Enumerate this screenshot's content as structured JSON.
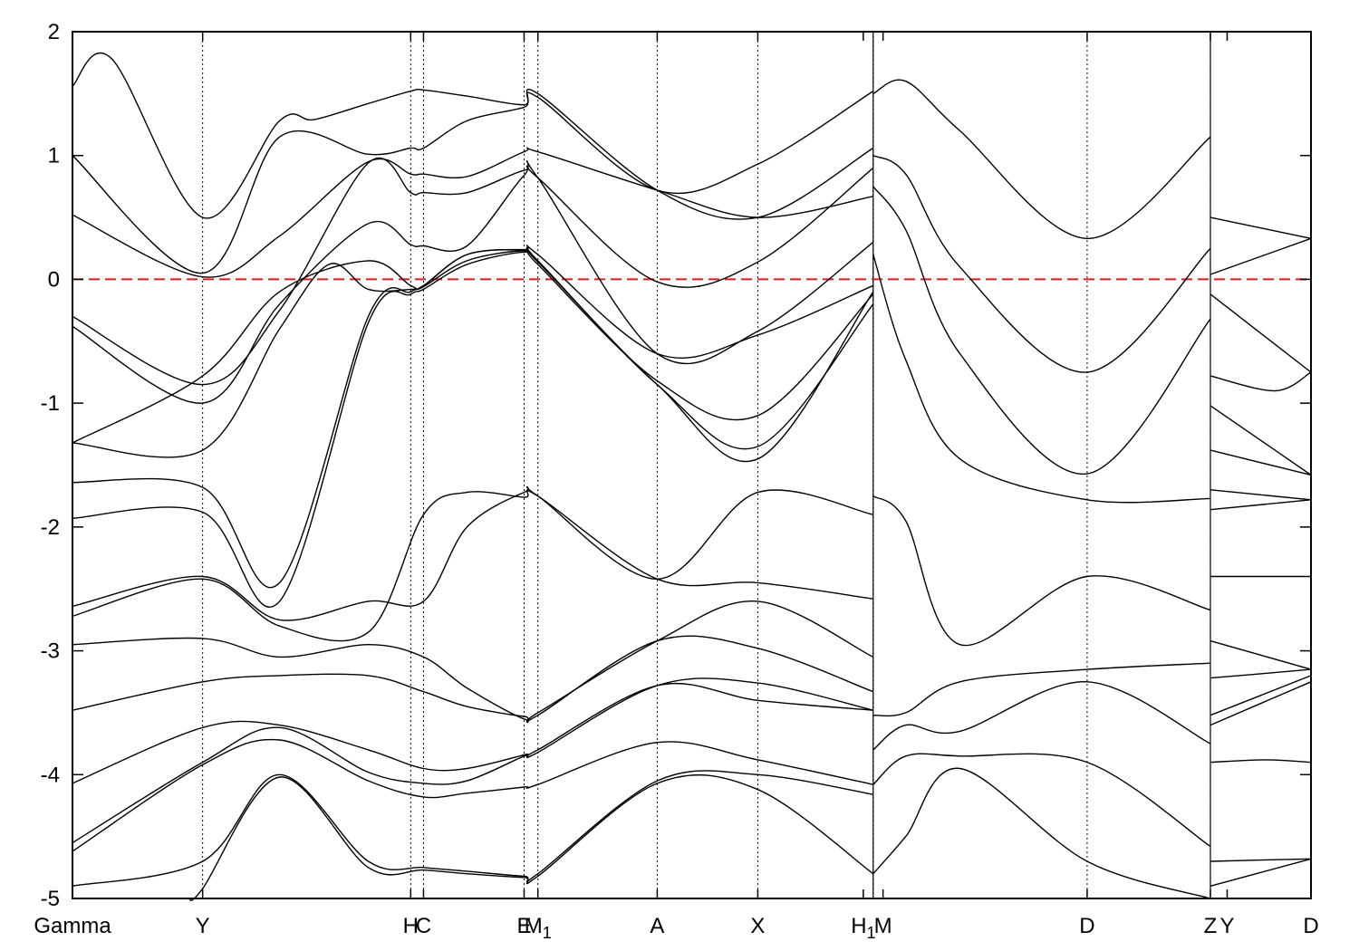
{
  "chart_data": {
    "type": "line",
    "title": "",
    "xlabel": "",
    "ylabel": "",
    "ylim": [
      -5,
      2
    ],
    "yticks": [
      2,
      1,
      0,
      -1,
      -2,
      -3,
      -4,
      -5
    ],
    "grid": false,
    "legend": "none",
    "fermi_level": {
      "y": 0,
      "color": "#d81e1e",
      "style": "dashed"
    },
    "segments": [
      {
        "x": [
          0,
          1.32
        ],
        "labels": [
          "Gamma",
          "Y",
          "H",
          "C",
          "E",
          "M1",
          "A",
          "X",
          "H1"
        ],
        "positions": [
          0,
          0.132,
          0.343,
          0.356,
          0.458,
          0.472,
          0.593,
          0.695,
          0.812
        ]
      },
      {
        "x": [
          0.812,
          1.154
        ]
      },
      {
        "x": [
          1.154,
          1.256
        ]
      }
    ],
    "x_ticks": [
      {
        "x": 0.0,
        "label": "Gamma"
      },
      {
        "x": 0.132,
        "label": "Y"
      },
      {
        "x": 0.343,
        "label": "H"
      },
      {
        "x": 0.356,
        "label": "C"
      },
      {
        "x": 0.458,
        "label": "E"
      },
      {
        "x": 0.472,
        "label": "M1"
      },
      {
        "x": 0.593,
        "label": "A"
      },
      {
        "x": 0.695,
        "label": "X"
      },
      {
        "x": 0.802,
        "label": "H1"
      },
      {
        "x": 0.822,
        "label": "M"
      },
      {
        "x": 1.029,
        "label": "D"
      },
      {
        "x": 1.154,
        "label": "Z"
      },
      {
        "x": 1.171,
        "label": "Y"
      },
      {
        "x": 1.256,
        "label": "D"
      }
    ],
    "vlines": [
      0.132,
      0.343,
      0.356,
      0.458,
      0.472,
      0.593,
      0.695,
      0.812,
      1.029,
      1.154
    ],
    "series": [
      {
        "x": [
          0,
          0.04,
          0.132,
          0.21,
          0.245,
          0.3,
          0.343,
          0.356,
          0.4,
          0.458,
          0.472,
          0.593,
          0.695,
          0.812
        ],
        "y": [
          1.56,
          1.78,
          0.5,
          1.28,
          1.29,
          1.42,
          1.52,
          1.53,
          1.48,
          1.41,
          1.5,
          0.72,
          0.5,
          1.06
        ]
      },
      {
        "x": [
          0,
          0.132,
          0.21,
          0.3,
          0.343,
          0.356,
          0.4,
          0.458,
          0.472,
          0.593,
          0.695,
          0.812
        ],
        "y": [
          1.0,
          0.05,
          1.15,
          1.01,
          1.06,
          1.06,
          1.28,
          1.39,
          1.47,
          0.72,
          0.93,
          1.52
        ]
      },
      {
        "x": [
          0,
          0.132,
          0.21,
          0.3,
          0.343,
          0.356,
          0.4,
          0.458,
          0.472,
          0.593,
          0.695,
          0.812
        ],
        "y": [
          0.52,
          0.02,
          0.35,
          0.95,
          0.85,
          0.85,
          0.83,
          1.03,
          1.03,
          0.72,
          0.5,
          0.67
        ]
      },
      {
        "x": [
          0,
          0.132,
          0.21,
          0.3,
          0.343,
          0.356,
          0.4,
          0.458,
          0.472,
          0.593,
          0.695,
          0.812
        ],
        "y": [
          -0.3,
          -0.85,
          -0.25,
          0.94,
          0.7,
          0.7,
          0.7,
          0.88,
          0.82,
          -0.02,
          0.14,
          0.9
        ]
      },
      {
        "x": [
          0,
          0.132,
          0.21,
          0.3,
          0.343,
          0.356,
          0.4,
          0.458,
          0.472,
          0.593,
          0.695,
          0.812
        ],
        "y": [
          -0.38,
          -1.0,
          -0.2,
          0.45,
          0.28,
          0.27,
          0.27,
          0.84,
          0.82,
          -0.6,
          -0.42,
          0.3
        ]
      },
      {
        "x": [
          0,
          0.132,
          0.21,
          0.3,
          0.343,
          0.356,
          0.4,
          0.458,
          0.472,
          0.593,
          0.695,
          0.812
        ],
        "y": [
          -1.32,
          -0.78,
          -0.1,
          0.15,
          -0.05,
          -0.05,
          0.2,
          0.24,
          0.2,
          -0.6,
          -0.45,
          -0.05
        ]
      },
      {
        "x": [
          0,
          0.132,
          0.21,
          0.26,
          0.3,
          0.343,
          0.356,
          0.4,
          0.458,
          0.472,
          0.593,
          0.695,
          0.812
        ],
        "y": [
          -1.32,
          -1.38,
          -0.4,
          0.12,
          -0.08,
          -0.08,
          -0.05,
          0.2,
          0.23,
          0.12,
          -0.82,
          -1.1,
          -0.12
        ]
      },
      {
        "x": [
          0,
          0.132,
          0.21,
          0.3,
          0.343,
          0.356,
          0.4,
          0.458,
          0.472,
          0.593,
          0.695,
          0.812
        ],
        "y": [
          -1.64,
          -1.68,
          -2.45,
          -0.3,
          -0.1,
          -0.06,
          0.15,
          0.23,
          0.15,
          -0.85,
          -1.35,
          -0.2
        ]
      },
      {
        "x": [
          0,
          0.132,
          0.21,
          0.3,
          0.343,
          0.356,
          0.4,
          0.458,
          0.472,
          0.593,
          0.695,
          0.812
        ],
        "y": [
          -1.93,
          -1.88,
          -2.6,
          -0.35,
          -0.12,
          -0.08,
          0.12,
          0.22,
          0.14,
          -0.85,
          -1.45,
          -0.1
        ]
      },
      {
        "x": [
          0,
          0.132,
          0.21,
          0.3,
          0.356,
          0.4,
          0.458,
          0.472,
          0.593,
          0.695,
          0.812
        ],
        "y": [
          -2.64,
          -2.4,
          -2.75,
          -2.6,
          -2.6,
          -2.0,
          -1.72,
          -1.75,
          -2.42,
          -1.72,
          -1.9
        ]
      },
      {
        "x": [
          0,
          0.132,
          0.21,
          0.3,
          0.356,
          0.4,
          0.458,
          0.472,
          0.593,
          0.695,
          0.812
        ],
        "y": [
          -2.72,
          -2.42,
          -2.8,
          -2.85,
          -1.9,
          -1.72,
          -1.76,
          -1.75,
          -2.42,
          -2.45,
          -2.58
        ]
      },
      {
        "x": [
          0,
          0.132,
          0.21,
          0.3,
          0.356,
          0.4,
          0.458,
          0.472,
          0.593,
          0.695,
          0.812
        ],
        "y": [
          -2.95,
          -2.9,
          -3.05,
          -2.95,
          -3.05,
          -3.3,
          -3.55,
          -3.5,
          -2.92,
          -2.6,
          -3.05
        ]
      },
      {
        "x": [
          0,
          0.132,
          0.21,
          0.3,
          0.356,
          0.4,
          0.458,
          0.472,
          0.593,
          0.695,
          0.812
        ],
        "y": [
          -3.48,
          -3.25,
          -3.2,
          -3.2,
          -3.33,
          -3.45,
          -3.53,
          -3.52,
          -2.92,
          -2.98,
          -3.33
        ]
      },
      {
        "x": [
          0,
          0.132,
          0.21,
          0.3,
          0.356,
          0.4,
          0.458,
          0.472,
          0.593,
          0.695,
          0.812
        ],
        "y": [
          -4.07,
          -3.62,
          -3.6,
          -3.8,
          -3.95,
          -3.95,
          -3.84,
          -3.8,
          -3.28,
          -3.4,
          -3.48
        ]
      },
      {
        "x": [
          0,
          0.132,
          0.21,
          0.3,
          0.356,
          0.4,
          0.458,
          0.472,
          0.593,
          0.695,
          0.812
        ],
        "y": [
          -4.55,
          -3.9,
          -3.62,
          -3.98,
          -4.07,
          -4.05,
          -3.85,
          -3.82,
          -3.28,
          -3.26,
          -3.48
        ]
      },
      {
        "x": [
          0,
          0.132,
          0.21,
          0.3,
          0.356,
          0.4,
          0.458,
          0.472,
          0.593,
          0.695,
          0.812
        ],
        "y": [
          -4.62,
          -3.92,
          -3.72,
          -4.05,
          -4.18,
          -4.15,
          -4.1,
          -4.08,
          -3.74,
          -3.88,
          -4.08
        ]
      },
      {
        "x": [
          0,
          0.132,
          0.21,
          0.3,
          0.356,
          0.4,
          0.458,
          0.472,
          0.593,
          0.695,
          0.812
        ],
        "y": [
          -4.9,
          -4.7,
          -4.0,
          -4.7,
          -4.75,
          -4.78,
          -4.82,
          -4.8,
          -4.05,
          -4.0,
          -4.16
        ]
      },
      {
        "x": [
          0.118,
          0.132,
          0.21,
          0.3,
          0.356,
          0.4,
          0.458,
          0.472,
          0.593,
          0.695,
          0.812
        ],
        "y": [
          -5.0,
          -4.92,
          -4.02,
          -4.75,
          -4.77,
          -4.8,
          -4.83,
          -4.82,
          -4.07,
          -4.12,
          -4.8
        ]
      },
      {
        "x": [
          0.812,
          0.845,
          0.9,
          1.029,
          1.154
        ],
        "y": [
          1.5,
          1.6,
          1.2,
          0.33,
          1.15
        ]
      },
      {
        "x": [
          0.812,
          0.845,
          0.9,
          1.029,
          1.154
        ],
        "y": [
          1.0,
          0.85,
          0.1,
          -0.75,
          0.25
        ]
      },
      {
        "x": [
          0.812,
          0.845,
          0.9,
          1.029,
          1.154
        ],
        "y": [
          0.75,
          0.4,
          -0.6,
          -1.57,
          -0.32
        ]
      },
      {
        "x": [
          0.812,
          0.845,
          0.9,
          1.029,
          1.154
        ],
        "y": [
          0.2,
          -0.65,
          -1.45,
          -1.78,
          -1.77
        ]
      },
      {
        "x": [
          0.812,
          0.845,
          0.9,
          1.029,
          1.154
        ],
        "y": [
          -1.75,
          -1.95,
          -2.95,
          -2.4,
          -2.67
        ]
      },
      {
        "x": [
          0.812,
          0.845,
          0.9,
          1.029,
          1.154
        ],
        "y": [
          -3.52,
          -3.5,
          -3.25,
          -3.15,
          -3.1
        ]
      },
      {
        "x": [
          0.812,
          0.845,
          0.9,
          1.029,
          1.154
        ],
        "y": [
          -3.8,
          -3.6,
          -3.65,
          -3.25,
          -3.75
        ]
      },
      {
        "x": [
          0.812,
          0.845,
          0.9,
          1.029,
          1.154
        ],
        "y": [
          -4.08,
          -3.85,
          -3.85,
          -3.9,
          -4.58
        ]
      },
      {
        "x": [
          0.812,
          0.845,
          0.9,
          1.029,
          1.154
        ],
        "y": [
          -4.8,
          -4.5,
          -3.95,
          -4.7,
          -5.0
        ]
      },
      {
        "x": [
          1.154,
          1.256
        ],
        "y": [
          0.5,
          0.33
        ]
      },
      {
        "x": [
          1.154,
          1.256
        ],
        "y": [
          0.04,
          0.33
        ]
      },
      {
        "x": [
          1.154,
          1.256
        ],
        "y": [
          -0.12,
          -0.75
        ]
      },
      {
        "x": [
          1.154,
          1.22,
          1.256
        ],
        "y": [
          -0.78,
          -0.9,
          -0.75
        ]
      },
      {
        "x": [
          1.154,
          1.256
        ],
        "y": [
          -1.02,
          -1.58
        ]
      },
      {
        "x": [
          1.154,
          1.256
        ],
        "y": [
          -1.38,
          -1.58
        ]
      },
      {
        "x": [
          1.154,
          1.256
        ],
        "y": [
          -1.7,
          -1.78
        ]
      },
      {
        "x": [
          1.154,
          1.256
        ],
        "y": [
          -1.86,
          -1.78
        ]
      },
      {
        "x": [
          1.154,
          1.256
        ],
        "y": [
          -2.4,
          -2.4
        ]
      },
      {
        "x": [
          1.154,
          1.256
        ],
        "y": [
          -2.92,
          -3.15
        ]
      },
      {
        "x": [
          1.154,
          1.256
        ],
        "y": [
          -3.22,
          -3.15
        ]
      },
      {
        "x": [
          1.154,
          1.256
        ],
        "y": [
          -3.52,
          -3.2
        ]
      },
      {
        "x": [
          1.154,
          1.256
        ],
        "y": [
          -3.6,
          -3.25
        ]
      },
      {
        "x": [
          1.154,
          1.21,
          1.256
        ],
        "y": [
          -3.9,
          -3.88,
          -3.9
        ]
      },
      {
        "x": [
          1.154,
          1.256
        ],
        "y": [
          -4.7,
          -4.68
        ]
      },
      {
        "x": [
          1.154,
          1.256
        ],
        "y": [
          -4.9,
          -4.68
        ]
      }
    ]
  }
}
